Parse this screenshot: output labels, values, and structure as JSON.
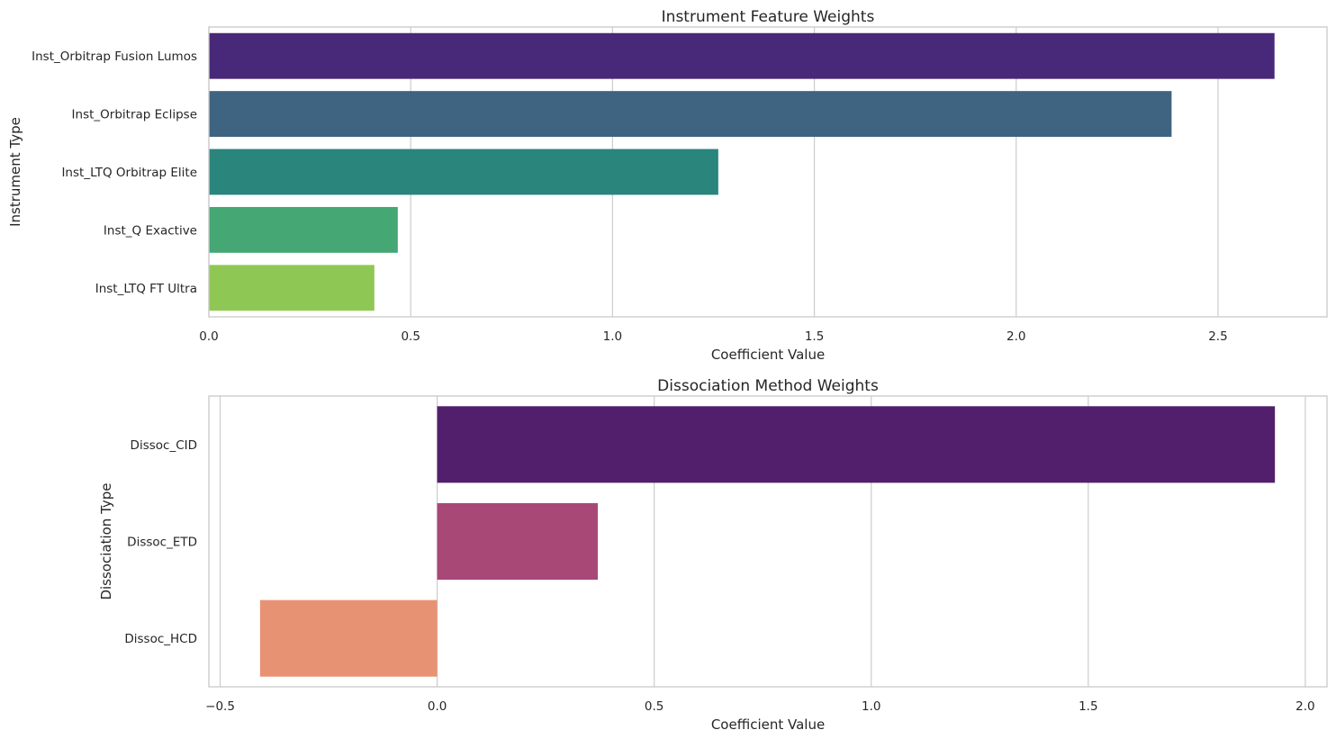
{
  "chart_data": [
    {
      "type": "bar",
      "orientation": "horizontal",
      "title": "Instrument Feature Weights",
      "xlabel": "Coefficient Value",
      "ylabel": "Instrument Type",
      "categories": [
        "Inst_Orbitrap Fusion Lumos",
        "Inst_Orbitrap Eclipse",
        "Inst_LTQ Orbitrap Elite",
        "Inst_Q Exactive",
        "Inst_LTQ FT Ultra"
      ],
      "values": [
        2.64,
        2.385,
        1.262,
        0.468,
        0.41
      ],
      "colors": [
        "#482878",
        "#3e6481",
        "#2a857c",
        "#44a774",
        "#8fc754"
      ],
      "xlim": [
        0,
        2.77
      ],
      "xticks": [
        0,
        0.5,
        1.0,
        1.5,
        2.0,
        2.5
      ],
      "xtick_labels": [
        "0.0",
        "0.5",
        "1.0",
        "1.5",
        "2.0",
        "2.5"
      ],
      "grid": "vertical"
    },
    {
      "type": "bar",
      "orientation": "horizontal",
      "title": "Dissociation Method Weights",
      "xlabel": "Coefficient Value",
      "ylabel": "Dissociation Type",
      "categories": [
        "Dissoc_CID",
        "Dissoc_ETD",
        "Dissoc_HCD"
      ],
      "values": [
        1.93,
        0.37,
        -0.408
      ],
      "colors": [
        "#511f6b",
        "#a84877",
        "#e89274"
      ],
      "xlim": [
        -0.526,
        2.05
      ],
      "xticks": [
        -0.5,
        0,
        0.5,
        1.0,
        1.5,
        2.0
      ],
      "xtick_labels": [
        "−0.5",
        "0.0",
        "0.5",
        "1.0",
        "1.5",
        "2.0"
      ],
      "grid": "vertical"
    }
  ]
}
